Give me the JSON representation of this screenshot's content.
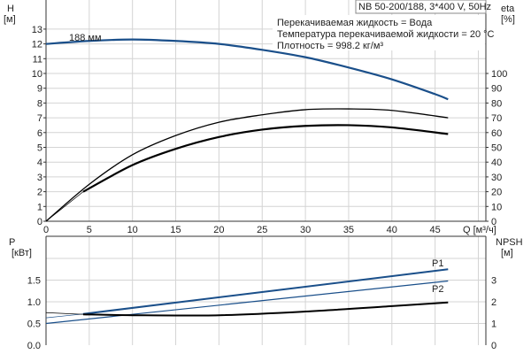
{
  "chart_data": [
    {
      "type": "line",
      "title": "NB 50-200/188, 3*400 V, 50Hz",
      "annotations": [
        "Перекачиваемая жидкость = Вода",
        "Температура перекачиваемой жидкости = 20 °C",
        "Плотность = 998.2 кг/м³"
      ],
      "xlabel": "Q [м³/ч]",
      "ylabel": "H",
      "ylabel_unit": "[м]",
      "y2label": "eta",
      "y2label_unit": "[%]",
      "xlim": [
        0,
        50
      ],
      "ylim": [
        0,
        13
      ],
      "y2lim": [
        0,
        100
      ],
      "x_ticks": [
        "0",
        "5",
        "10",
        "15",
        "20",
        "25",
        "30",
        "35",
        "40",
        "45"
      ],
      "y_ticks": [
        "0",
        "1",
        "2",
        "3",
        "4",
        "5",
        "6",
        "7",
        "8",
        "9",
        "10",
        "11",
        "12",
        "13"
      ],
      "y2_ticks": [
        "0",
        "10",
        "20",
        "30",
        "40",
        "50",
        "60",
        "70",
        "80",
        "90",
        "100"
      ],
      "grid": true,
      "series": [
        {
          "name": "188 мм",
          "axis": "H",
          "color": "#1a4f8a",
          "x": [
            0,
            5,
            10,
            15,
            20,
            25,
            30,
            35,
            40,
            45,
            46.5
          ],
          "y": [
            12.0,
            12.2,
            12.3,
            12.2,
            12.0,
            11.6,
            11.1,
            10.4,
            9.6,
            8.6,
            8.25
          ]
        },
        {
          "axis": "eta",
          "color": "#000000",
          "x": [
            0,
            5,
            10,
            15,
            20,
            25,
            30,
            35,
            40,
            46.5
          ],
          "y": [
            0,
            25,
            45,
            58,
            67,
            72,
            75.5,
            76,
            75,
            70
          ]
        },
        {
          "axis": "eta",
          "color": "#000000",
          "x": [
            4.3,
            10,
            15,
            20,
            25,
            30,
            35,
            40,
            46.5
          ],
          "y": [
            20,
            38,
            49,
            57,
            62,
            64.5,
            65,
            63.5,
            59
          ],
          "extension": {
            "x": [
              0,
              4.3
            ],
            "y": [
              0,
              20
            ]
          }
        }
      ]
    },
    {
      "type": "line",
      "ylabel": "P",
      "ylabel_unit": "[кВт]",
      "y2label": "NPSH",
      "y2label_unit": "[м]",
      "xlim": [
        0,
        50
      ],
      "ylim": [
        0,
        2.0
      ],
      "y2lim": [
        0,
        4
      ],
      "y_ticks": [
        "0.0",
        "0.5",
        "1.0",
        "1.5"
      ],
      "y2_ticks": [
        "0",
        "1",
        "2",
        "3"
      ],
      "grid": true,
      "series": [
        {
          "name": "P1",
          "axis": "P",
          "color": "#1a4f8a",
          "x": [
            4.3,
            46.5
          ],
          "y": [
            0.72,
            1.75
          ],
          "extension": {
            "x": [
              0,
              4.3
            ],
            "y": [
              0.63,
              0.72
            ]
          }
        },
        {
          "name": "P2",
          "axis": "P",
          "color": "#1a4f8a",
          "x": [
            0,
            46.5
          ],
          "y": [
            0.5,
            1.48
          ]
        },
        {
          "axis": "NPSH",
          "color": "#000000",
          "x": [
            4.3,
            10,
            20,
            30,
            40,
            46.5
          ],
          "y": [
            1.42,
            1.38,
            1.38,
            1.55,
            1.8,
            1.97
          ],
          "extension": {
            "x": [
              0,
              4.3
            ],
            "y": [
              1.5,
              1.42
            ]
          }
        }
      ]
    }
  ]
}
